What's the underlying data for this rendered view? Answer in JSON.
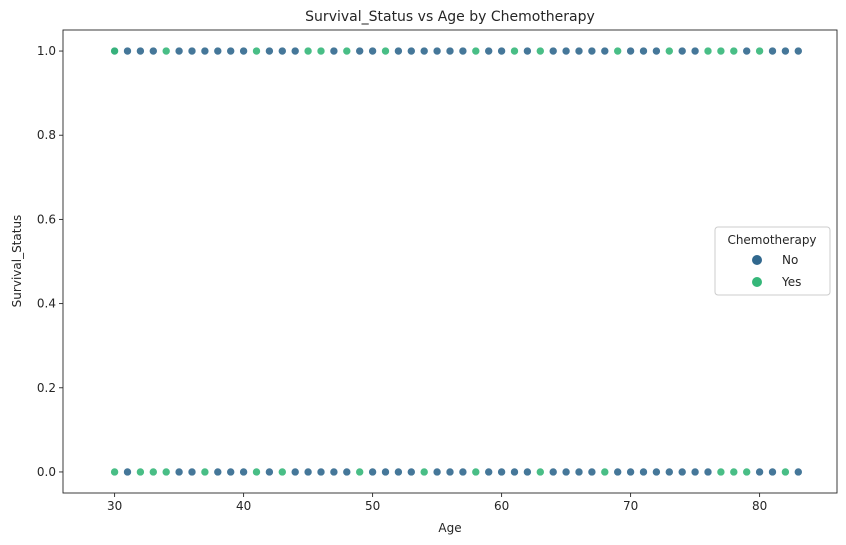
{
  "chart_data": {
    "type": "scatter",
    "title": "Survival_Status vs Age by Chemotherapy",
    "xlabel": "Age",
    "ylabel": "Survival_Status",
    "xlim": [
      26,
      86
    ],
    "ylim": [
      -0.05,
      1.05
    ],
    "xticks": [
      30,
      40,
      50,
      60,
      70,
      80
    ],
    "yticks": [
      0.0,
      0.2,
      0.4,
      0.6,
      0.8,
      1.0
    ],
    "ytick_labels": [
      "0.0",
      "0.2",
      "0.4",
      "0.6",
      "0.8",
      "1.0"
    ],
    "grid": false,
    "legend": {
      "title": "Chemotherapy",
      "placement": "center-right"
    },
    "series": [
      {
        "name": "No",
        "color": "#31688e",
        "points": [
          [
            30,
            1
          ],
          [
            31,
            1
          ],
          [
            32,
            1
          ],
          [
            33,
            1
          ],
          [
            35,
            1
          ],
          [
            36,
            1
          ],
          [
            37,
            1
          ],
          [
            38,
            1
          ],
          [
            39,
            1
          ],
          [
            40,
            1
          ],
          [
            42,
            1
          ],
          [
            43,
            1
          ],
          [
            44,
            1
          ],
          [
            47,
            1
          ],
          [
            49,
            1
          ],
          [
            50,
            1
          ],
          [
            52,
            1
          ],
          [
            53,
            1
          ],
          [
            54,
            1
          ],
          [
            55,
            1
          ],
          [
            56,
            1
          ],
          [
            57,
            1
          ],
          [
            59,
            1
          ],
          [
            60,
            1
          ],
          [
            62,
            1
          ],
          [
            64,
            1
          ],
          [
            65,
            1
          ],
          [
            66,
            1
          ],
          [
            67,
            1
          ],
          [
            68,
            1
          ],
          [
            70,
            1
          ],
          [
            71,
            1
          ],
          [
            72,
            1
          ],
          [
            74,
            1
          ],
          [
            75,
            1
          ],
          [
            79,
            1
          ],
          [
            81,
            1
          ],
          [
            82,
            1
          ],
          [
            83,
            1
          ],
          [
            31,
            0
          ],
          [
            35,
            0
          ],
          [
            36,
            0
          ],
          [
            38,
            0
          ],
          [
            39,
            0
          ],
          [
            40,
            0
          ],
          [
            42,
            0
          ],
          [
            44,
            0
          ],
          [
            45,
            0
          ],
          [
            46,
            0
          ],
          [
            47,
            0
          ],
          [
            48,
            0
          ],
          [
            50,
            0
          ],
          [
            51,
            0
          ],
          [
            52,
            0
          ],
          [
            53,
            0
          ],
          [
            55,
            0
          ],
          [
            56,
            0
          ],
          [
            57,
            0
          ],
          [
            59,
            0
          ],
          [
            60,
            0
          ],
          [
            61,
            0
          ],
          [
            62,
            0
          ],
          [
            64,
            0
          ],
          [
            65,
            0
          ],
          [
            66,
            0
          ],
          [
            67,
            0
          ],
          [
            69,
            0
          ],
          [
            70,
            0
          ],
          [
            71,
            0
          ],
          [
            72,
            0
          ],
          [
            73,
            0
          ],
          [
            74,
            0
          ],
          [
            75,
            0
          ],
          [
            76,
            0
          ],
          [
            80,
            0
          ],
          [
            81,
            0
          ],
          [
            83,
            0
          ]
        ]
      },
      {
        "name": "Yes",
        "color": "#35b779",
        "points": [
          [
            30,
            1
          ],
          [
            34,
            1
          ],
          [
            41,
            1
          ],
          [
            45,
            1
          ],
          [
            46,
            1
          ],
          [
            48,
            1
          ],
          [
            51,
            1
          ],
          [
            58,
            1
          ],
          [
            61,
            1
          ],
          [
            63,
            1
          ],
          [
            69,
            1
          ],
          [
            73,
            1
          ],
          [
            76,
            1
          ],
          [
            77,
            1
          ],
          [
            78,
            1
          ],
          [
            80,
            1
          ],
          [
            30,
            0
          ],
          [
            32,
            0
          ],
          [
            33,
            0
          ],
          [
            34,
            0
          ],
          [
            37,
            0
          ],
          [
            41,
            0
          ],
          [
            43,
            0
          ],
          [
            49,
            0
          ],
          [
            54,
            0
          ],
          [
            58,
            0
          ],
          [
            63,
            0
          ],
          [
            68,
            0
          ],
          [
            77,
            0
          ],
          [
            78,
            0
          ],
          [
            79,
            0
          ],
          [
            82,
            0
          ]
        ]
      }
    ]
  }
}
